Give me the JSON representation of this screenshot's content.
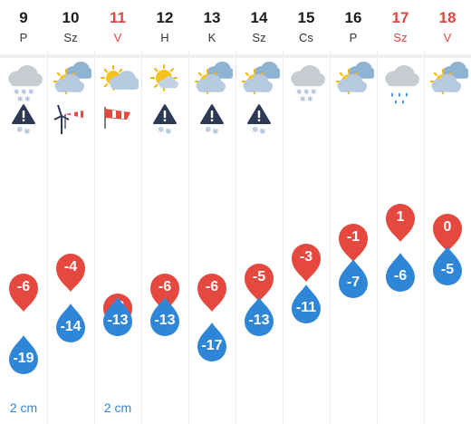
{
  "colors": {
    "max": "#e5483f",
    "min": "#2f86d6",
    "weekend": "#e0463e"
  },
  "days": [
    {
      "num": "9",
      "name": "P",
      "weekend": false,
      "icon": "cloud-snow-icon",
      "warn": "snow-warning-icon",
      "max": "-6",
      "min": "-19",
      "snow": "2 cm"
    },
    {
      "num": "10",
      "name": "Sz",
      "weekend": false,
      "icon": "partly-cloudy-icon",
      "warn": "wind-turbine-icon",
      "max": "-4",
      "min": "-14",
      "snow": ""
    },
    {
      "num": "11",
      "name": "V",
      "weekend": true,
      "icon": "partly-sunny-icon",
      "warn": "windsock-icon",
      "max": "-8",
      "min": "-13",
      "snow": "2 cm"
    },
    {
      "num": "12",
      "name": "H",
      "weekend": false,
      "icon": "mostly-sunny-icon",
      "warn": "snow-warning-icon",
      "max": "-6",
      "min": "-13",
      "snow": ""
    },
    {
      "num": "13",
      "name": "K",
      "weekend": false,
      "icon": "partly-cloudy-icon",
      "warn": "snow-warning-icon",
      "max": "-6",
      "min": "-17",
      "snow": ""
    },
    {
      "num": "14",
      "name": "Sz",
      "weekend": false,
      "icon": "partly-cloudy-icon",
      "warn": "snow-warning-icon",
      "max": "-5",
      "min": "-13",
      "snow": ""
    },
    {
      "num": "15",
      "name": "Cs",
      "weekend": false,
      "icon": "cloud-snow-icon",
      "warn": "",
      "max": "-3",
      "min": "-11",
      "snow": ""
    },
    {
      "num": "16",
      "name": "P",
      "weekend": false,
      "icon": "partly-cloudy-icon",
      "warn": "",
      "max": "-1",
      "min": "-7",
      "snow": ""
    },
    {
      "num": "17",
      "name": "Sz",
      "weekend": true,
      "icon": "cloud-rain-icon",
      "warn": "",
      "max": "1",
      "min": "-6",
      "snow": ""
    },
    {
      "num": "18",
      "name": "V",
      "weekend": true,
      "icon": "partly-cloudy-icon",
      "warn": "",
      "max": "0",
      "min": "-5",
      "snow": ""
    }
  ]
}
